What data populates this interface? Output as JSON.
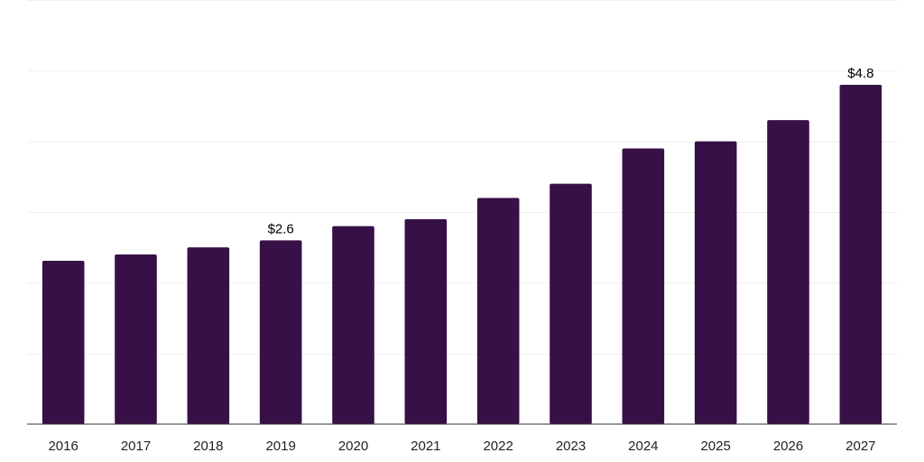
{
  "chart_data": {
    "type": "bar",
    "categories": [
      "2016",
      "2017",
      "2018",
      "2019",
      "2020",
      "2021",
      "2022",
      "2023",
      "2024",
      "2025",
      "2026",
      "2027"
    ],
    "values": [
      2.31,
      2.4,
      2.5,
      2.6,
      2.8,
      2.9,
      3.2,
      3.4,
      3.9,
      4.0,
      4.3,
      4.8
    ],
    "data_labels": [
      {
        "index": 3,
        "text": "$2.6"
      },
      {
        "index": 11,
        "text": "$4.8"
      }
    ],
    "title": "",
    "xlabel": "",
    "ylabel": "",
    "ylim": [
      0,
      6
    ],
    "grid": true,
    "bar_color": "#371047",
    "legend": "none"
  }
}
